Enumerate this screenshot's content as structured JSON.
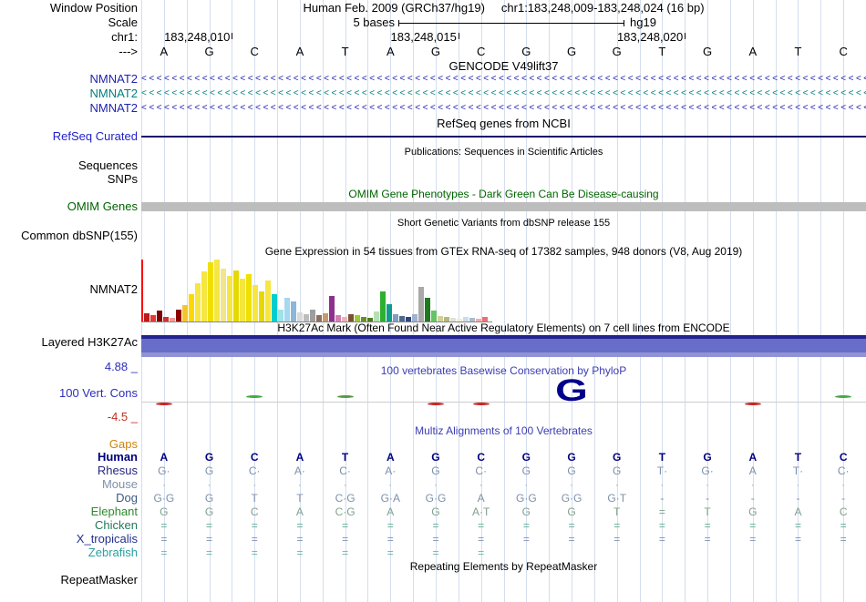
{
  "header": {
    "left_label": "Window Position",
    "assembly": "Human Feb. 2009 (GRCh37/hg19)",
    "position": "chr1:183,248,009-183,248,024 (16 bp)",
    "scale_label": "Scale",
    "scale_text": "5 bases",
    "scale_right": "hg19",
    "chrom_label": "chr1:",
    "strand_label": "--->",
    "ruler": [
      {
        "text": "183,248,010",
        "tick_col": 2
      },
      {
        "text": "183,248,015",
        "tick_col": 7
      },
      {
        "text": "183,248,020",
        "tick_col": 12
      }
    ]
  },
  "sequence": {
    "bases": [
      "A",
      "G",
      "C",
      "A",
      "T",
      "A",
      "G",
      "C",
      "G",
      "G",
      "G",
      "T",
      "G",
      "A",
      "T",
      "C"
    ]
  },
  "gencode": {
    "title": "GENCODE V49lift37",
    "genes": [
      {
        "label": "NMNAT2",
        "color": "#2222b2",
        "strand": "left"
      },
      {
        "label": "NMNAT2",
        "color": "#008080",
        "strand": "left"
      },
      {
        "label": "NMNAT2",
        "color": "#2222b2",
        "strand": "left"
      }
    ]
  },
  "refseq": {
    "title": "RefSeq genes from NCBI",
    "label": "RefSeq Curated",
    "label_color": "#2222cc",
    "line_color": "#13136b"
  },
  "publications": {
    "title": "Publications: Sequences in Scientific Articles",
    "rows": [
      "Sequences",
      "SNPs"
    ]
  },
  "omim": {
    "title": "OMIM Gene Phenotypes - Dark Green Can Be Disease-causing",
    "title_color": "#006400",
    "label": "OMIM Genes",
    "label_color": "#006400",
    "bar_color": "#bdbdbd"
  },
  "dbsnp": {
    "title": "Short Genetic Variants from dbSNP release 155",
    "label": "Common dbSNP(155)"
  },
  "gtex": {
    "title": "Gene Expression in 54 tissues from GTEx RNA-seq of 17382 samples, 948 donors (V8, Aug 2019)",
    "label": "NMNAT2",
    "region_line_color": "#ff0000",
    "baseline_color": "#888888"
  },
  "chart_data": {
    "type": "bar",
    "title": "Gene Expression in 54 tissues from GTEx RNA-seq of 17382 samples, 948 donors (V8, Aug 2019)",
    "gene": "NMNAT2",
    "ylabel": "relative expression (bar heights as rendered, px)",
    "n_tissues": 54,
    "values": [
      9,
      7,
      12,
      5,
      4,
      13,
      18,
      30,
      42,
      55,
      65,
      68,
      58,
      50,
      56,
      47,
      52,
      40,
      33,
      45,
      30,
      13,
      26,
      22,
      10,
      8,
      13,
      7,
      9,
      28,
      7,
      5,
      8,
      7,
      5,
      4,
      11,
      33,
      19,
      8,
      6,
      5,
      8,
      38,
      26,
      12,
      6,
      5,
      4,
      3,
      5,
      4,
      3,
      5
    ],
    "colors": [
      "#b71c1c",
      "#e53935",
      "#7f0000",
      "#d32f2f",
      "#ef9a9a",
      "#8b0000",
      "#f4c430",
      "#ffd700",
      "#f5e642",
      "#f5e642",
      "#f0e000",
      "#f5e642",
      "#f0e68c",
      "#f5e642",
      "#e6d800",
      "#f5e642",
      "#f0e000",
      "#f5e642",
      "#e6d800",
      "#f5e642",
      "#00ced1",
      "#9fe2e8",
      "#a6d8f0",
      "#8ab8d8",
      "#d9d9d9",
      "#bdbdbd",
      "#9e9e9e",
      "#8d6e63",
      "#c49a6c",
      "#8e2f8e",
      "#d17fb0",
      "#e8b4b8",
      "#7a5230",
      "#9acd32",
      "#6b8e23",
      "#4e7a27",
      "#b5e0b5",
      "#2eaf2e",
      "#0f9b8e",
      "#7f9fc0",
      "#51678a",
      "#2f4480",
      "#9fb2cf",
      "#a9a9a9",
      "#1e7a1e",
      "#66c266",
      "#cfcf9e",
      "#b8b872",
      "#e0e0e0",
      "#efefd0",
      "#cddcec",
      "#a9bccd",
      "#f4a9a9",
      "#ee6f6f"
    ],
    "grid": false,
    "legend_position": "none"
  },
  "h3k27ac": {
    "title": "H3K27Ac Mark (Often Found Near Active Regulatory Elements) on 7 cell lines from ENCODE",
    "label": "Layered H3K27Ac",
    "band_colors": [
      "#23238f",
      "#686dc7",
      "#8f93d6"
    ]
  },
  "phylop": {
    "title": "100 vertebrates Basewise Conservation by PhyloP",
    "title_color": "#3c3cb4",
    "label": "100 Vert. Cons",
    "label_color": "#2d2dbb",
    "max_label": "4.88 _",
    "min_label": "-4.5 _",
    "max_color": "#2d2dbb",
    "min_color": "#c03020",
    "axis_color": "#cccccc",
    "big_letter": "G",
    "big_letter_col": 10,
    "big_letter_color": "#00008b",
    "marks": [
      {
        "col": 1,
        "color": "#cc2222",
        "side": "below"
      },
      {
        "col": 3,
        "color": "#44aa44",
        "side": "above"
      },
      {
        "col": 5,
        "color": "#559944",
        "side": "above"
      },
      {
        "col": 7,
        "color": "#cc2222",
        "side": "below"
      },
      {
        "col": 8,
        "color": "#cc2222",
        "side": "below"
      },
      {
        "col": 14,
        "color": "#cc2222",
        "side": "below"
      },
      {
        "col": 16,
        "color": "#44aa44",
        "side": "above"
      }
    ]
  },
  "multiz": {
    "title": "Multiz Alignments of 100 Vertebrates",
    "title_color": "#3c3cb4",
    "rows": [
      {
        "label": "Gaps",
        "color": "#cc8412",
        "cell_color": "#cc8412",
        "cells": [
          "",
          "",
          "",
          "",
          "",
          "",
          "",
          "",
          "",
          "",
          "",
          "",
          "",
          "",
          "",
          ""
        ]
      },
      {
        "label": "Human",
        "color": "#000080",
        "cell_color": "#000080",
        "weight": "bold",
        "cells": [
          "A",
          "G",
          "C",
          "A",
          "T",
          "A",
          "G",
          "C",
          "G",
          "G",
          "G",
          "T",
          "G",
          "A",
          "T",
          "C"
        ]
      },
      {
        "label": "Rhesus",
        "color": "#26267f",
        "cell_color": "#7e90aa",
        "cells": [
          "G·",
          "G",
          "C·",
          "A·",
          "C·",
          "A·",
          "G",
          "C·",
          "G",
          "G",
          "G",
          "T·",
          "G·",
          "A",
          "T·",
          "C·"
        ]
      },
      {
        "label": "Mouse",
        "color": "#8090a8",
        "cell_color": "#a0aebc",
        "cells": [
          "·",
          "·",
          "·",
          "·",
          "·",
          "·",
          "·",
          "·",
          "·",
          "·",
          "·",
          "·",
          "·",
          "·",
          "·",
          "·"
        ]
      },
      {
        "label": "Dog",
        "color": "#3c5a80",
        "cell_color": "#7e90aa",
        "cells": [
          "G·G",
          "G",
          "T",
          "T",
          "C·G",
          "G·A",
          "G·G",
          "A",
          "G·G",
          "G·G",
          "G·T",
          "-",
          "-",
          "-",
          "-",
          "-"
        ]
      },
      {
        "label": "Elephant",
        "color": "#2e8b2e",
        "cell_color": "#82a08c",
        "cells": [
          "G",
          "G",
          "C",
          "A",
          "C·G",
          "A",
          "G",
          "A·T",
          "G",
          "G",
          "T",
          "=",
          "T",
          "G",
          "A",
          "C"
        ]
      },
      {
        "label": "Chicken",
        "color": "#20795a",
        "cell_color": "#62ac96",
        "cells": [
          "=",
          "=",
          "=",
          "=",
          "=",
          "=",
          "=",
          "=",
          "=",
          "=",
          "=",
          "=",
          "=",
          "=",
          "=",
          "="
        ]
      },
      {
        "label": "X_tropicalis",
        "color": "#203090",
        "cell_color": "#8292b4",
        "cells": [
          "=",
          "=",
          "=",
          "=",
          "=",
          "=",
          "=",
          "=",
          "=",
          "=",
          "=",
          "=",
          "=",
          "=",
          "=",
          "="
        ]
      },
      {
        "label": "Zebrafish",
        "color": "#2aa0a0",
        "cell_color": "#6ab6b0",
        "cells": [
          "=",
          "=",
          "=",
          "=",
          "=",
          "=",
          "=",
          "=",
          "",
          "",
          "",
          "",
          "",
          "",
          "",
          ""
        ]
      }
    ]
  },
  "repeatmasker": {
    "title": "Repeating Elements by RepeatMasker",
    "label": "RepeatMasker"
  },
  "colors": {
    "gridline": "#d4deee",
    "background": "#ffffff",
    "text": "#000000"
  }
}
